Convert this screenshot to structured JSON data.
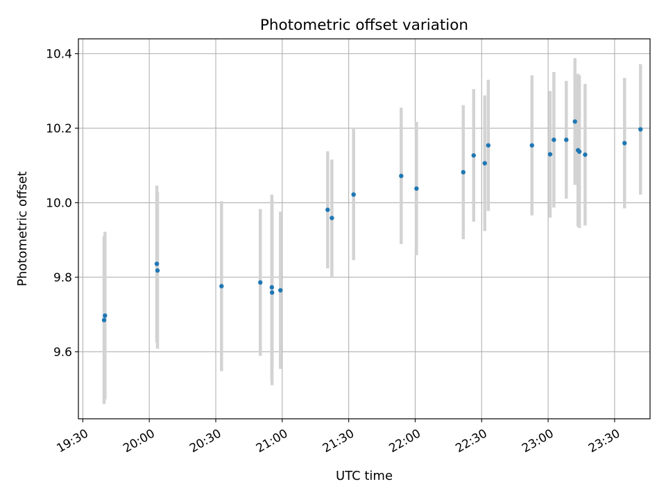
{
  "chart_data": {
    "type": "scatter",
    "title": "Photometric offset variation",
    "xlabel": "UTC time",
    "ylabel": "Photometric offset",
    "xlim_minutes": [
      1168,
      1426
    ],
    "ylim": [
      9.42,
      10.44
    ],
    "grid": true,
    "x_ticks": [
      {
        "minutes": 1170,
        "label": "19:30"
      },
      {
        "minutes": 1200,
        "label": "20:00"
      },
      {
        "minutes": 1230,
        "label": "20:30"
      },
      {
        "minutes": 1260,
        "label": "21:00"
      },
      {
        "minutes": 1290,
        "label": "21:30"
      },
      {
        "minutes": 1320,
        "label": "22:00"
      },
      {
        "minutes": 1350,
        "label": "22:30"
      },
      {
        "minutes": 1380,
        "label": "23:00"
      },
      {
        "minutes": 1410,
        "label": "23:30"
      }
    ],
    "y_ticks": [
      {
        "value": 9.6,
        "label": "9.6"
      },
      {
        "value": 9.8,
        "label": "9.8"
      },
      {
        "value": 10.0,
        "label": "10.0"
      },
      {
        "value": 10.2,
        "label": "10.2"
      },
      {
        "value": 10.4,
        "label": "10.4"
      }
    ],
    "marker_color": "#1f77b4",
    "errorbar_color": "#d3d3d3",
    "points": [
      {
        "t": 1179.6,
        "y": 9.685,
        "err": 0.225
      },
      {
        "t": 1180.0,
        "y": 9.697,
        "err": 0.225
      },
      {
        "t": 1203.4,
        "y": 9.836,
        "err": 0.21
      },
      {
        "t": 1203.7,
        "y": 9.818,
        "err": 0.21
      },
      {
        "t": 1232.6,
        "y": 9.776,
        "err": 0.228
      },
      {
        "t": 1250.1,
        "y": 9.786,
        "err": 0.197
      },
      {
        "t": 1255.3,
        "y": 9.773,
        "err": 0.249
      },
      {
        "t": 1255.4,
        "y": 9.759,
        "err": 0.249
      },
      {
        "t": 1259.2,
        "y": 9.765,
        "err": 0.211
      },
      {
        "t": 1280.5,
        "y": 9.981,
        "err": 0.157
      },
      {
        "t": 1282.4,
        "y": 9.959,
        "err": 0.157
      },
      {
        "t": 1292.2,
        "y": 10.022,
        "err": 0.176
      },
      {
        "t": 1313.7,
        "y": 10.072,
        "err": 0.183
      },
      {
        "t": 1320.6,
        "y": 10.038,
        "err": 0.179
      },
      {
        "t": 1341.7,
        "y": 10.082,
        "err": 0.18
      },
      {
        "t": 1346.4,
        "y": 10.127,
        "err": 0.178
      },
      {
        "t": 1351.4,
        "y": 10.106,
        "err": 0.182
      },
      {
        "t": 1353.0,
        "y": 10.154,
        "err": 0.176
      },
      {
        "t": 1372.7,
        "y": 10.154,
        "err": 0.188
      },
      {
        "t": 1380.9,
        "y": 10.13,
        "err": 0.17
      },
      {
        "t": 1382.6,
        "y": 10.169,
        "err": 0.182
      },
      {
        "t": 1388.2,
        "y": 10.169,
        "err": 0.158
      },
      {
        "t": 1392.1,
        "y": 10.218,
        "err": 0.17
      },
      {
        "t": 1393.5,
        "y": 10.141,
        "err": 0.205
      },
      {
        "t": 1394.1,
        "y": 10.137,
        "err": 0.205
      },
      {
        "t": 1396.7,
        "y": 10.129,
        "err": 0.19
      },
      {
        "t": 1414.5,
        "y": 10.16,
        "err": 0.175
      },
      {
        "t": 1421.7,
        "y": 10.197,
        "err": 0.175
      }
    ]
  }
}
